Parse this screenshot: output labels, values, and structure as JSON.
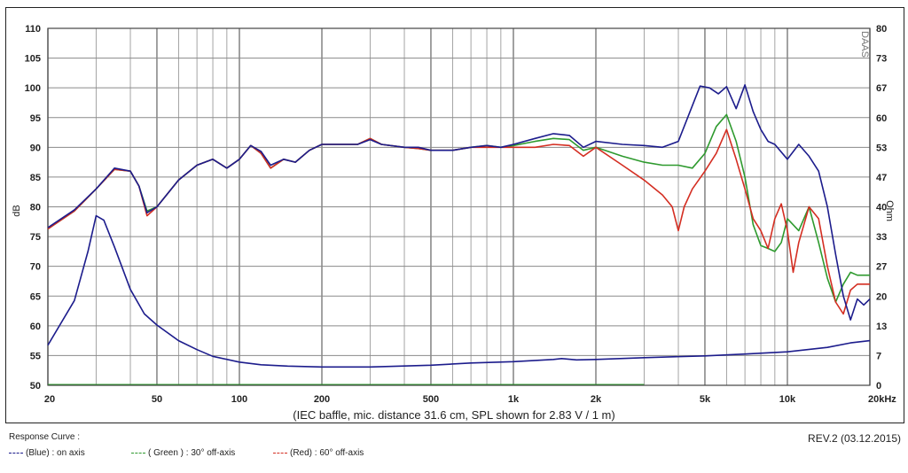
{
  "chart_data": {
    "type": "line",
    "xscale": "log",
    "xlim": [
      20,
      20000
    ],
    "ylim_left": [
      50,
      110
    ],
    "ylim_right": [
      0,
      80
    ],
    "ylabel": "dB",
    "ylabel_right": "Ohm",
    "xlabel": "(IEC baffle, mic. distance 31.6 cm, SPL shown for 2.83 V / 1 m)",
    "watermark": "DAAS",
    "x_ticks": [
      {
        "value": 20,
        "label": "20"
      },
      {
        "value": 50,
        "label": "50"
      },
      {
        "value": 100,
        "label": "100"
      },
      {
        "value": 200,
        "label": "200"
      },
      {
        "value": 500,
        "label": "500"
      },
      {
        "value": 1000,
        "label": "1k"
      },
      {
        "value": 2000,
        "label": "2k"
      },
      {
        "value": 5000,
        "label": "5k"
      },
      {
        "value": 10000,
        "label": "10k"
      },
      {
        "value": 20000,
        "label": "20kHz"
      }
    ],
    "y_ticks_left": [
      "50",
      "55",
      "60",
      "65",
      "70",
      "75",
      "80",
      "85",
      "90",
      "95",
      "100",
      "105",
      "110"
    ],
    "y_ticks_right": [
      "0",
      "7",
      "13",
      "20",
      "27",
      "33",
      "40",
      "47",
      "53",
      "60",
      "67",
      "73",
      "80"
    ],
    "grid": true,
    "series": [
      {
        "name": "(Blue) : on axis",
        "color": "#1c1c8c",
        "points": [
          [
            20,
            76.5
          ],
          [
            25,
            79.5
          ],
          [
            30,
            83
          ],
          [
            35,
            86.5
          ],
          [
            40,
            86
          ],
          [
            43,
            83.5
          ],
          [
            46,
            79
          ],
          [
            50,
            80
          ],
          [
            60,
            84.5
          ],
          [
            70,
            87
          ],
          [
            80,
            88
          ],
          [
            90,
            86.5
          ],
          [
            100,
            88
          ],
          [
            110,
            90.3
          ],
          [
            120,
            89.3
          ],
          [
            130,
            87
          ],
          [
            145,
            88
          ],
          [
            160,
            87.5
          ],
          [
            180,
            89.5
          ],
          [
            200,
            90.5
          ],
          [
            230,
            90.5
          ],
          [
            270,
            90.5
          ],
          [
            300,
            91.3
          ],
          [
            330,
            90.5
          ],
          [
            400,
            90
          ],
          [
            450,
            90
          ],
          [
            500,
            89.5
          ],
          [
            600,
            89.5
          ],
          [
            700,
            90
          ],
          [
            800,
            90.3
          ],
          [
            900,
            90
          ],
          [
            1000,
            90.5
          ],
          [
            1200,
            91.5
          ],
          [
            1400,
            92.3
          ],
          [
            1600,
            92
          ],
          [
            1800,
            90
          ],
          [
            2000,
            91
          ],
          [
            2500,
            90.5
          ],
          [
            3000,
            90.3
          ],
          [
            3500,
            90
          ],
          [
            4000,
            91
          ],
          [
            4500,
            97
          ],
          [
            4800,
            100.3
          ],
          [
            5200,
            100
          ],
          [
            5600,
            99
          ],
          [
            6000,
            100.2
          ],
          [
            6500,
            96.5
          ],
          [
            7000,
            100.5
          ],
          [
            7500,
            96
          ],
          [
            8000,
            93
          ],
          [
            8500,
            91
          ],
          [
            9000,
            90.5
          ],
          [
            10000,
            88
          ],
          [
            11000,
            90.5
          ],
          [
            12000,
            88.5
          ],
          [
            13000,
            86
          ],
          [
            14000,
            80
          ],
          [
            15000,
            72
          ],
          [
            16000,
            65
          ],
          [
            17000,
            61
          ],
          [
            18000,
            64.5
          ],
          [
            19000,
            63.5
          ],
          [
            20000,
            64.5
          ]
        ]
      },
      {
        "name": "( Green ) : 30° off-axis",
        "color": "#2e9a2e",
        "points": [
          [
            20,
            76.3
          ],
          [
            25,
            79.3
          ],
          [
            30,
            83
          ],
          [
            35,
            86.3
          ],
          [
            40,
            86
          ],
          [
            43,
            83.5
          ],
          [
            46,
            79.3
          ],
          [
            50,
            80
          ],
          [
            60,
            84.5
          ],
          [
            70,
            87
          ],
          [
            80,
            88
          ],
          [
            90,
            86.5
          ],
          [
            100,
            88
          ],
          [
            110,
            90.3
          ],
          [
            120,
            89
          ],
          [
            130,
            86.5
          ],
          [
            145,
            88
          ],
          [
            160,
            87.5
          ],
          [
            180,
            89.5
          ],
          [
            200,
            90.5
          ],
          [
            230,
            90.5
          ],
          [
            270,
            90.5
          ],
          [
            300,
            91.5
          ],
          [
            330,
            90.5
          ],
          [
            400,
            90
          ],
          [
            450,
            89.8
          ],
          [
            500,
            89.5
          ],
          [
            600,
            89.5
          ],
          [
            700,
            90
          ],
          [
            800,
            90.3
          ],
          [
            900,
            90
          ],
          [
            1000,
            90.3
          ],
          [
            1200,
            91
          ],
          [
            1400,
            91.5
          ],
          [
            1600,
            91.3
          ],
          [
            1800,
            89.5
          ],
          [
            2000,
            90
          ],
          [
            2500,
            88.5
          ],
          [
            3000,
            87.5
          ],
          [
            3500,
            87
          ],
          [
            4000,
            87
          ],
          [
            4500,
            86.5
          ],
          [
            5000,
            89
          ],
          [
            5500,
            93.5
          ],
          [
            6000,
            95.5
          ],
          [
            6500,
            91
          ],
          [
            7000,
            85
          ],
          [
            7500,
            77
          ],
          [
            8000,
            73.5
          ],
          [
            8500,
            73
          ],
          [
            9000,
            72.5
          ],
          [
            9500,
            74
          ],
          [
            10000,
            78
          ],
          [
            11000,
            76
          ],
          [
            12000,
            80
          ],
          [
            13000,
            74
          ],
          [
            14000,
            68
          ],
          [
            15000,
            64
          ],
          [
            16000,
            67
          ],
          [
            17000,
            69
          ],
          [
            18000,
            68.5
          ],
          [
            20000,
            68.5
          ]
        ]
      },
      {
        "name": "(Red) : 60° off-axis",
        "color": "#d42e22",
        "points": [
          [
            20,
            76.3
          ],
          [
            25,
            79.3
          ],
          [
            30,
            83
          ],
          [
            35,
            86.3
          ],
          [
            40,
            86
          ],
          [
            43,
            83.5
          ],
          [
            46,
            78.5
          ],
          [
            50,
            80
          ],
          [
            60,
            84.5
          ],
          [
            70,
            87
          ],
          [
            80,
            88
          ],
          [
            90,
            86.5
          ],
          [
            100,
            88
          ],
          [
            110,
            90.3
          ],
          [
            120,
            89
          ],
          [
            130,
            86.5
          ],
          [
            145,
            88
          ],
          [
            160,
            87.5
          ],
          [
            180,
            89.5
          ],
          [
            200,
            90.5
          ],
          [
            230,
            90.5
          ],
          [
            270,
            90.5
          ],
          [
            300,
            91.5
          ],
          [
            330,
            90.5
          ],
          [
            400,
            90
          ],
          [
            450,
            89.8
          ],
          [
            500,
            89.5
          ],
          [
            600,
            89.5
          ],
          [
            700,
            90
          ],
          [
            800,
            90
          ],
          [
            900,
            90
          ],
          [
            1000,
            90
          ],
          [
            1200,
            90
          ],
          [
            1400,
            90.5
          ],
          [
            1600,
            90.3
          ],
          [
            1800,
            88.5
          ],
          [
            2000,
            90
          ],
          [
            2500,
            87
          ],
          [
            3000,
            84.5
          ],
          [
            3500,
            82
          ],
          [
            3800,
            80
          ],
          [
            4000,
            76
          ],
          [
            4200,
            80
          ],
          [
            4500,
            83
          ],
          [
            5000,
            86
          ],
          [
            5500,
            89
          ],
          [
            6000,
            93
          ],
          [
            6500,
            88
          ],
          [
            7000,
            83
          ],
          [
            7500,
            78
          ],
          [
            8000,
            76
          ],
          [
            8500,
            73
          ],
          [
            9000,
            78
          ],
          [
            9500,
            80.5
          ],
          [
            10000,
            76
          ],
          [
            10500,
            69
          ],
          [
            11000,
            74
          ],
          [
            12000,
            80
          ],
          [
            13000,
            78
          ],
          [
            14000,
            70
          ],
          [
            15000,
            64
          ],
          [
            16000,
            62
          ],
          [
            17000,
            66
          ],
          [
            18000,
            67
          ],
          [
            20000,
            67
          ]
        ]
      },
      {
        "name": "Impedance",
        "axis": "right",
        "color": "#1c1c8c",
        "points": [
          [
            20,
            9
          ],
          [
            25,
            19
          ],
          [
            28,
            30
          ],
          [
            30,
            38
          ],
          [
            32,
            37
          ],
          [
            35,
            31
          ],
          [
            40,
            21.5
          ],
          [
            45,
            16
          ],
          [
            50,
            13.5
          ],
          [
            60,
            10
          ],
          [
            70,
            8
          ],
          [
            80,
            6.5
          ],
          [
            100,
            5.2
          ],
          [
            120,
            4.6
          ],
          [
            150,
            4.3
          ],
          [
            200,
            4.1
          ],
          [
            300,
            4.1
          ],
          [
            500,
            4.5
          ],
          [
            700,
            5
          ],
          [
            1000,
            5.3
          ],
          [
            1400,
            5.8
          ],
          [
            1500,
            6
          ],
          [
            1700,
            5.7
          ],
          [
            2000,
            5.8
          ],
          [
            3000,
            6.2
          ],
          [
            5000,
            6.6
          ],
          [
            7000,
            7
          ],
          [
            10000,
            7.5
          ],
          [
            14000,
            8.5
          ],
          [
            17000,
            9.5
          ],
          [
            20000,
            10
          ]
        ]
      }
    ]
  },
  "legend": {
    "title": "Response Curve :",
    "items": [
      {
        "label": "(Blue)  : on axis",
        "color": "#1c1c8c"
      },
      {
        "label": "( Green ) : 30° off-axis",
        "color": "#2e9a2e"
      },
      {
        "label": "(Red) : 60° off-axis",
        "color": "#d42e22"
      }
    ]
  },
  "revision": "REV.2 (03.12.2015)"
}
